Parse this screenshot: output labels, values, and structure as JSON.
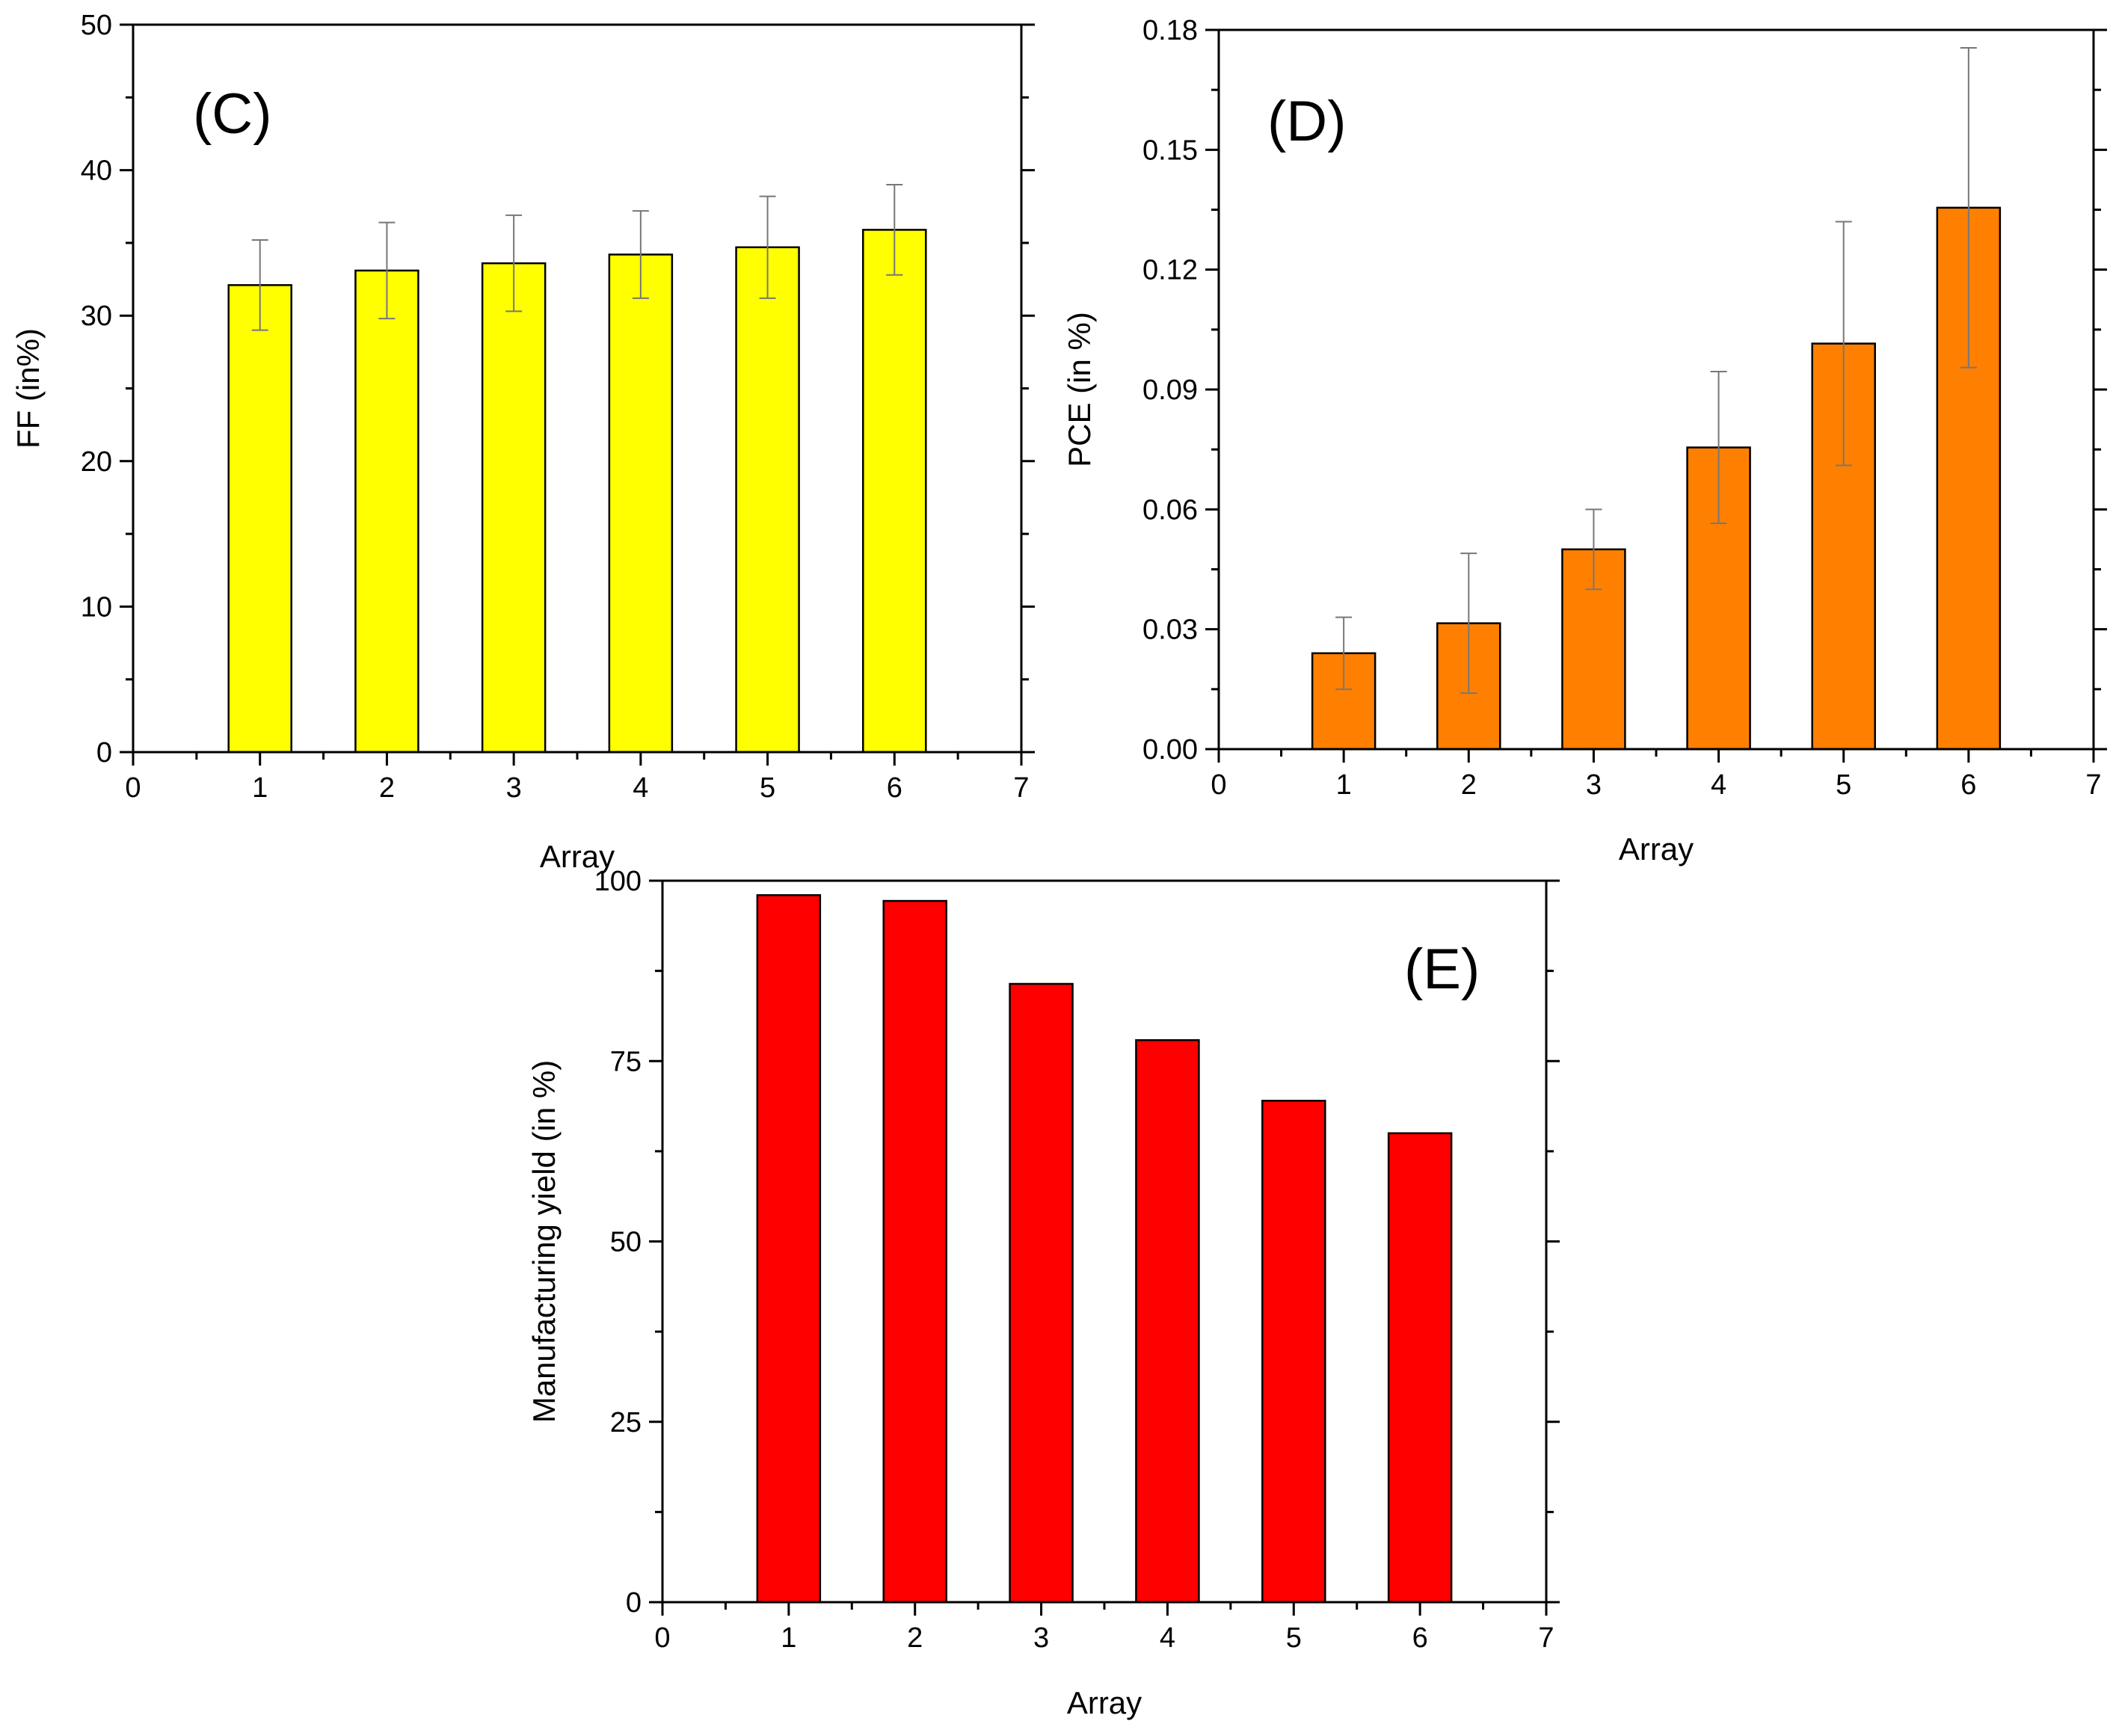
{
  "chart_data": [
    {
      "id": "C",
      "type": "bar",
      "panel_label": "(C)",
      "xlabel": "Array",
      "ylabel": "FF (in%)",
      "x": [
        1,
        2,
        3,
        4,
        5,
        6
      ],
      "values": [
        32.1,
        33.1,
        33.6,
        34.2,
        34.7,
        35.9
      ],
      "errors": [
        3.1,
        3.3,
        3.3,
        3.0,
        3.5,
        3.1
      ],
      "xlim": [
        0,
        7
      ],
      "ylim": [
        0,
        50
      ],
      "xticks": [
        "0",
        "1",
        "2",
        "3",
        "4",
        "5",
        "6",
        "7"
      ],
      "yticks": [
        "0",
        "10",
        "20",
        "30",
        "40",
        "50"
      ],
      "color": "#ffff00",
      "error_color": "#777777",
      "grid": false
    },
    {
      "id": "D",
      "type": "bar",
      "panel_label": "(D)",
      "xlabel": "Array",
      "ylabel": "PCE (in %)",
      "x": [
        1,
        2,
        3,
        4,
        5,
        6
      ],
      "values": [
        0.024,
        0.0315,
        0.05,
        0.0755,
        0.1015,
        0.1355
      ],
      "errors": [
        0.009,
        0.0175,
        0.01,
        0.019,
        0.0305,
        0.04
      ],
      "xlim": [
        0,
        7
      ],
      "ylim": [
        0,
        0.18
      ],
      "xticks": [
        "0",
        "1",
        "2",
        "3",
        "4",
        "5",
        "6",
        "7"
      ],
      "yticks": [
        "0.00",
        "0.03",
        "0.06",
        "0.09",
        "0.12",
        "0.15",
        "0.18"
      ],
      "color": "#ff8000",
      "error_color": "#777777",
      "grid": false
    },
    {
      "id": "E",
      "type": "bar",
      "panel_label": "(E)",
      "xlabel": "Array",
      "ylabel": "Manufacturing yield (in %)",
      "x": [
        1,
        2,
        3,
        4,
        5,
        6
      ],
      "values": [
        98,
        97.2,
        85.7,
        77.9,
        69.5,
        65
      ],
      "errors": [],
      "xlim": [
        0,
        7
      ],
      "ylim": [
        0,
        100
      ],
      "xticks": [
        "0",
        "1",
        "2",
        "3",
        "4",
        "5",
        "6",
        "7"
      ],
      "yticks": [
        "0",
        "25",
        "50",
        "75",
        "100"
      ],
      "color": "#ff0000",
      "error_color": "#777777",
      "grid": false
    }
  ]
}
